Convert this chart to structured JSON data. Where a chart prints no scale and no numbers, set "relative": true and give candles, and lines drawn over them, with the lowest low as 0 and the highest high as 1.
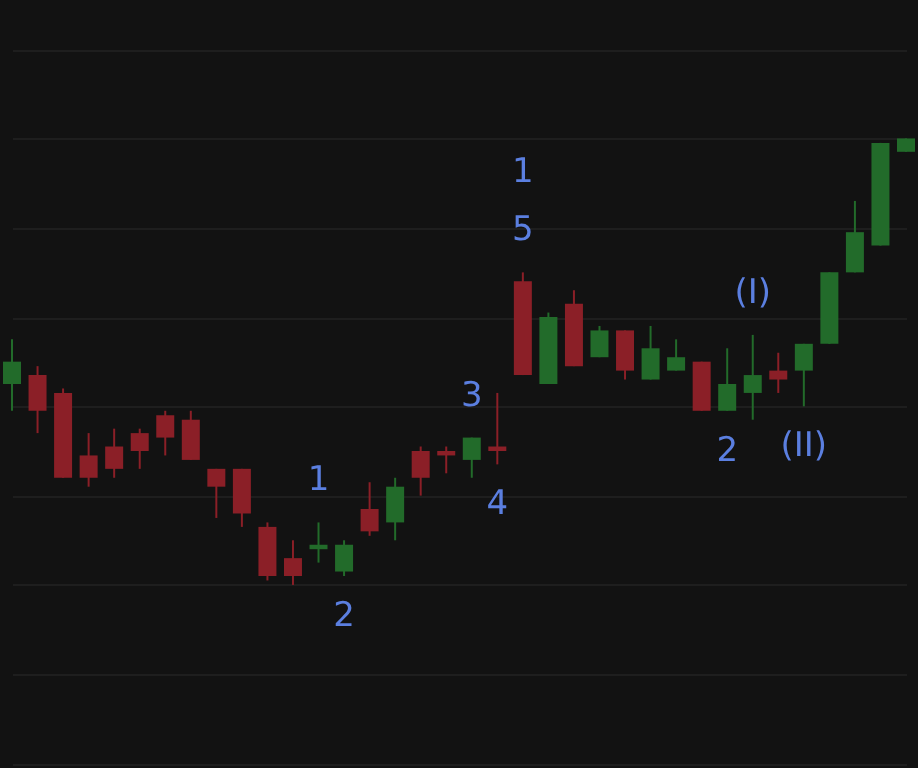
{
  "chart_data": {
    "type": "candlestick",
    "relative": true,
    "value_labels": [
      null,
      null,
      null,
      null,
      null,
      null,
      null,
      null,
      null,
      null,
      null,
      null,
      "1",
      "2",
      null,
      null,
      null,
      null,
      "3",
      "4",
      "1\n5",
      null,
      null,
      null,
      null,
      null,
      null,
      null,
      "2",
      "(I)",
      null,
      "(II)",
      null,
      null,
      null,
      null
    ],
    "categories": [
      null,
      null,
      null,
      null,
      null,
      null,
      null,
      null,
      null,
      null,
      null,
      null,
      null,
      null,
      null,
      null,
      null,
      null,
      null,
      null,
      null,
      null,
      null,
      null,
      null,
      null,
      null,
      null,
      null,
      null,
      null,
      null,
      null,
      null,
      null,
      null
    ],
    "ohlc": [
      [
        0.45,
        0.55,
        0.39,
        0.5
      ],
      [
        0.47,
        0.49,
        0.34,
        0.39
      ],
      [
        0.43,
        0.44,
        0.24,
        0.24
      ],
      [
        0.29,
        0.34,
        0.22,
        0.24
      ],
      [
        0.31,
        0.35,
        0.24,
        0.26
      ],
      [
        0.34,
        0.35,
        0.26,
        0.3
      ],
      [
        0.38,
        0.39,
        0.29,
        0.33
      ],
      [
        0.37,
        0.39,
        0.28,
        0.28
      ],
      [
        0.26,
        0.26,
        0.15,
        0.22
      ],
      [
        0.26,
        0.26,
        0.13,
        0.16
      ],
      [
        0.13,
        0.14,
        0.01,
        0.02
      ],
      [
        0.06,
        0.1,
        0.0,
        0.02
      ],
      [
        0.08,
        0.14,
        0.05,
        0.09
      ],
      [
        0.03,
        0.1,
        0.02,
        0.09
      ],
      [
        0.17,
        0.23,
        0.11,
        0.12
      ],
      [
        0.14,
        0.24,
        0.1,
        0.22
      ],
      [
        0.3,
        0.31,
        0.2,
        0.24
      ],
      [
        0.3,
        0.31,
        0.25,
        0.29
      ],
      [
        0.28,
        0.33,
        0.24,
        0.33
      ],
      [
        0.31,
        0.43,
        0.27,
        0.3
      ],
      [
        0.68,
        0.7,
        0.47,
        0.47
      ],
      [
        0.45,
        0.61,
        0.45,
        0.6
      ],
      [
        0.63,
        0.66,
        0.49,
        0.49
      ],
      [
        0.51,
        0.58,
        0.51,
        0.57
      ],
      [
        0.57,
        0.57,
        0.46,
        0.48
      ],
      [
        0.46,
        0.58,
        0.46,
        0.53
      ],
      [
        0.48,
        0.55,
        0.48,
        0.51
      ],
      [
        0.5,
        0.5,
        0.39,
        0.39
      ],
      [
        0.39,
        0.53,
        0.39,
        0.45
      ],
      [
        0.43,
        0.56,
        0.37,
        0.47
      ],
      [
        0.48,
        0.52,
        0.43,
        0.46
      ],
      [
        0.48,
        0.54,
        0.4,
        0.54
      ],
      [
        0.54,
        0.7,
        0.54,
        0.7
      ],
      [
        0.7,
        0.86,
        0.7,
        0.79
      ],
      [
        0.76,
        0.99,
        0.76,
        0.99
      ],
      [
        0.97,
        1.0,
        0.97,
        1.0
      ]
    ],
    "colors": [
      "#226b2a",
      "#8b1f27",
      "#8b1f27",
      "#8b1f27",
      "#8b1f27",
      "#8b1f27",
      "#8b1f27",
      "#8b1f27",
      "#8b1f27",
      "#8b1f27",
      "#8b1f27",
      "#8b1f27",
      "#226b2a",
      "#226b2a",
      "#8b1f27",
      "#226b2a",
      "#8b1f27",
      "#8b1f27",
      "#226b2a",
      "#8b1f27",
      "#8b1f27",
      "#226b2a",
      "#8b1f27",
      "#226b2a",
      "#8b1f27",
      "#226b2a",
      "#226b2a",
      "#8b1f27",
      "#226b2a",
      "#226b2a",
      "#8b1f27",
      "#226b2a",
      "#226b2a",
      "#226b2a",
      "#226b2a",
      "#226b2a"
    ],
    "grid": "y"
  }
}
